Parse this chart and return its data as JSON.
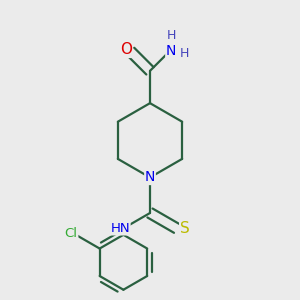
{
  "bg_color": "#ebebeb",
  "atom_colors": {
    "C": "#1a1a1a",
    "N": "#0000ee",
    "O": "#dd0000",
    "S": "#bbbb00",
    "Cl": "#33aa33",
    "H": "#4444bb"
  },
  "bond_color": "#2a6040",
  "figsize": [
    3.0,
    3.0
  ],
  "dpi": 100
}
